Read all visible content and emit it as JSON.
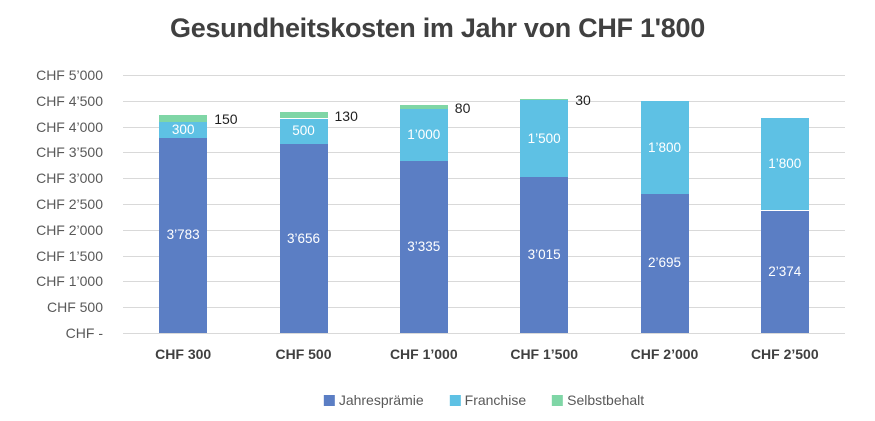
{
  "chart_data": {
    "type": "bar",
    "stacked": true,
    "title": "Gesundheitskosten im Jahr von CHF 1'800",
    "categories": [
      "CHF 300",
      "CHF 500",
      "CHF 1’000",
      "CHF 1’500",
      "CHF 2’000",
      "CHF 2’500"
    ],
    "series": [
      {
        "name": "Jahresprämie",
        "color": "#5B7EC4",
        "label_position": "inside",
        "values": [
          3783,
          3656,
          3335,
          3015,
          2695,
          2374
        ],
        "labels": [
          "3’783",
          "3’656",
          "3’335",
          "3’015",
          "2’695",
          "2’374"
        ]
      },
      {
        "name": "Franchise",
        "color": "#5EC1E4",
        "label_position": "inside",
        "values": [
          300,
          500,
          1000,
          1500,
          1800,
          1800
        ],
        "labels": [
          "300",
          "500",
          "1’000",
          "1’500",
          "1’800",
          "1’800"
        ]
      },
      {
        "name": "Selbstbehalt",
        "color": "#7FD6A6",
        "label_position": "outside-right",
        "values": [
          150,
          130,
          80,
          30,
          0,
          0
        ],
        "labels": [
          "150",
          "130",
          "80",
          "30",
          "",
          ""
        ]
      }
    ],
    "y_axis": {
      "min": 0,
      "max": 5000,
      "ticks": [
        {
          "label": "CHF 5’000",
          "value": 5000
        },
        {
          "label": "CHF 4’500",
          "value": 4500
        },
        {
          "label": "CHF 4’000",
          "value": 4000
        },
        {
          "label": "CHF 3’500",
          "value": 3500
        },
        {
          "label": "CHF 3’000",
          "value": 3000
        },
        {
          "label": "CHF 2’500",
          "value": 2500
        },
        {
          "label": "CHF 2’000",
          "value": 2000
        },
        {
          "label": "CHF 1’500",
          "value": 1500
        },
        {
          "label": "CHF 1’000",
          "value": 1000
        },
        {
          "label": "CHF 500",
          "value": 500
        },
        {
          "label": "CHF -",
          "value": 0
        }
      ]
    },
    "grid": true,
    "legend_position": "bottom",
    "colors": {
      "grid": "#D9D9D9",
      "axis_text": "#595959",
      "category_text": "#404040",
      "title_text": "#404040",
      "inside_label": "#FFFFFF",
      "outside_label": "#1F1F1F",
      "legend_text": "#595959",
      "background": "#FFFFFF"
    }
  }
}
